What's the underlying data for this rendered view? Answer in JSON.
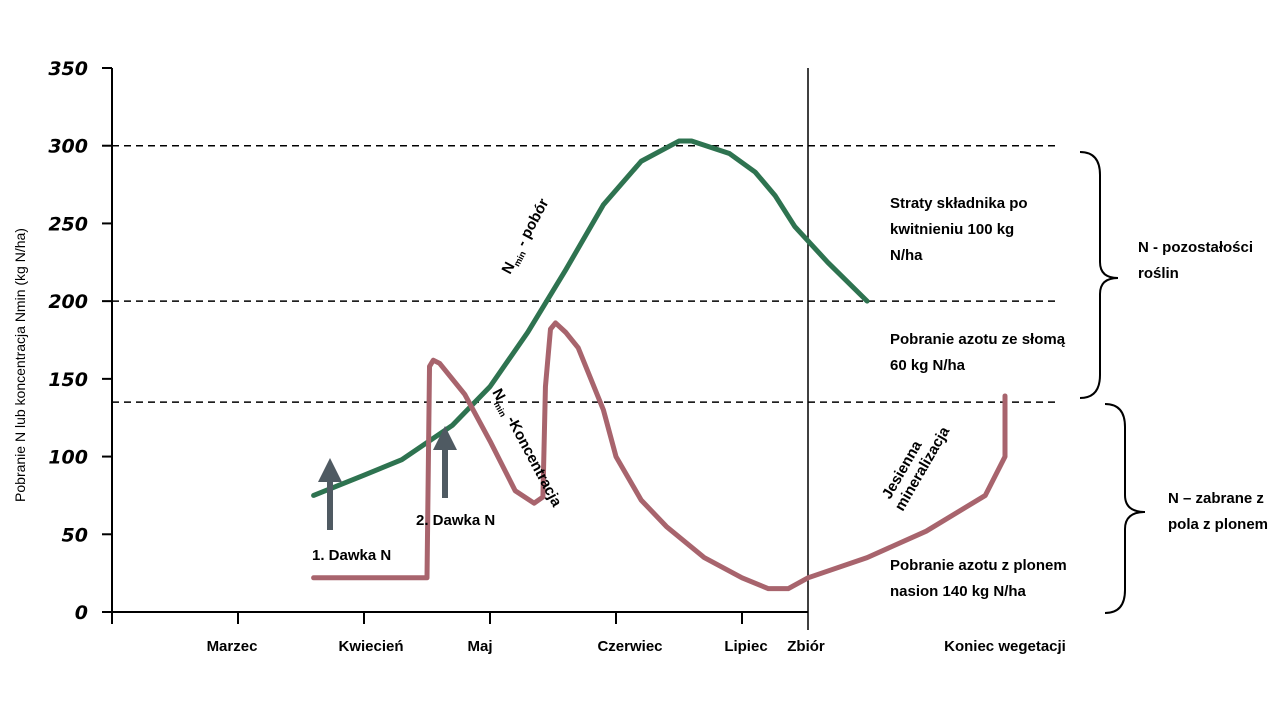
{
  "chart_data": {
    "type": "line",
    "ylabel": "Pobranie N lub  koncentracja Nmin (kg N/ha)",
    "ylim": [
      0,
      350
    ],
    "yticks": [
      "0",
      "50",
      "100",
      "150",
      "200",
      "250",
      "300",
      "350"
    ],
    "categories": [
      "Marzec",
      "Kwiecień",
      "Maj",
      "Czerwiec",
      "Lipiec",
      "Zbiór",
      "Koniec wegetacji"
    ],
    "reference_lines": [
      300,
      200,
      135
    ],
    "series": [
      {
        "name": "Nmin - pobór",
        "label_main": "N",
        "label_sub": "min",
        "label_rest": " - pobór",
        "color": "#2e7350",
        "points": [
          [
            0.6,
            75
          ],
          [
            1.0,
            88
          ],
          [
            1.3,
            98
          ],
          [
            1.7,
            120
          ],
          [
            2.0,
            145
          ],
          [
            2.3,
            180
          ],
          [
            2.6,
            220
          ],
          [
            2.9,
            262
          ],
          [
            3.2,
            290
          ],
          [
            3.5,
            303
          ],
          [
            3.6,
            303
          ],
          [
            3.9,
            295
          ],
          [
            4.2,
            283
          ],
          [
            4.5,
            268
          ],
          [
            4.8,
            248
          ],
          [
            5.1,
            225
          ],
          [
            5.3,
            200
          ]
        ]
      },
      {
        "name": "Nmin -Koncentracja",
        "label_main": "N",
        "label_sub": "min",
        "label_rest": " -Koncentracja",
        "color": "#a8646d",
        "points": [
          [
            0.6,
            22
          ],
          [
            1.0,
            22
          ],
          [
            1.5,
            22
          ],
          [
            1.52,
            158
          ],
          [
            1.55,
            162
          ],
          [
            1.6,
            160
          ],
          [
            1.8,
            140
          ],
          [
            2.0,
            110
          ],
          [
            2.2,
            78
          ],
          [
            2.35,
            70
          ],
          [
            2.42,
            74
          ],
          [
            2.44,
            145
          ],
          [
            2.48,
            182
          ],
          [
            2.52,
            186
          ],
          [
            2.6,
            180
          ],
          [
            2.7,
            170
          ],
          [
            2.9,
            130
          ],
          [
            3.0,
            100
          ],
          [
            3.2,
            72
          ],
          [
            3.4,
            55
          ],
          [
            3.7,
            35
          ],
          [
            4.0,
            22
          ],
          [
            4.4,
            15
          ],
          [
            4.7,
            15
          ],
          [
            5.0,
            22
          ],
          [
            5.3,
            35
          ],
          [
            5.6,
            52
          ],
          [
            5.9,
            75
          ],
          [
            6.3,
            100
          ],
          [
            6.7,
            118
          ],
          [
            7.0,
            132
          ],
          [
            7.3,
            137
          ],
          [
            7.7,
            138
          ],
          [
            8.0,
            138
          ],
          [
            8.2,
            139
          ]
        ]
      }
    ],
    "annotations": {
      "dose1": "1. Dawka N",
      "dose2": "2. Dawka N",
      "mineralization_line1": "Jesienna",
      "mineralization_line2": "mineralizacja",
      "straty": [
        "Straty składnika po",
        "kwitnieniu 100 kg",
        "N/ha"
      ],
      "sloma": [
        "Pobranie azotu ze słomą",
        "60 kg N/ha"
      ],
      "plon": [
        "Pobranie azotu z plonem",
        "nasion 140 kg N/ha"
      ],
      "pozostalosci": [
        "N - pozostałości",
        "roślin"
      ],
      "zabrane": [
        "N – zabrane z",
        "pola z plonem"
      ]
    },
    "arrow_color": "#4f5a62"
  }
}
